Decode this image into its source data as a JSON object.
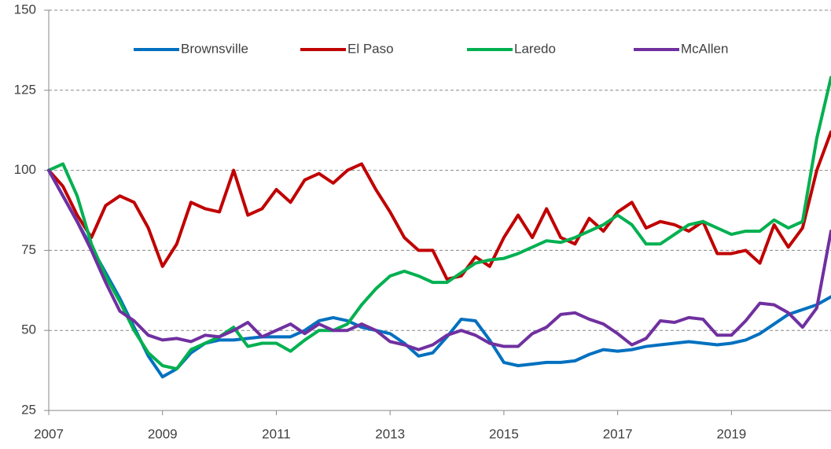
{
  "chart_data": {
    "type": "line",
    "x": [
      2007,
      2007.25,
      2007.5,
      2007.75,
      2008,
      2008.25,
      2008.5,
      2008.75,
      2009,
      2009.25,
      2009.5,
      2009.75,
      2010,
      2010.25,
      2010.5,
      2010.75,
      2011,
      2011.25,
      2011.5,
      2011.75,
      2012,
      2012.25,
      2012.5,
      2012.75,
      2013,
      2013.25,
      2013.5,
      2013.75,
      2014,
      2014.25,
      2014.5,
      2014.75,
      2015,
      2015.25,
      2015.5,
      2015.75,
      2016,
      2016.25,
      2016.5,
      2016.75,
      2017,
      2017.25,
      2017.5,
      2017.75,
      2018,
      2018.25,
      2018.5,
      2018.75,
      2019,
      2019.25,
      2019.5,
      2019.75,
      2020,
      2020.25,
      2020.5,
      2020.75
    ],
    "series": [
      {
        "name": "Brownsville",
        "color": "#0070c0",
        "values": [
          100,
          92,
          84,
          76,
          68,
          60,
          51,
          42,
          35.5,
          38,
          43,
          46,
          47,
          47,
          47.5,
          48,
          48,
          48,
          50,
          53,
          54,
          53,
          51,
          50,
          49,
          46,
          42,
          43,
          48,
          53.5,
          53,
          47,
          40,
          39,
          39.5,
          40,
          40,
          40.5,
          42.5,
          44,
          43.5,
          44,
          45,
          45.5,
          46,
          46.5,
          46,
          45.5,
          46,
          47,
          49,
          52,
          55,
          56.5,
          58,
          60.5
        ]
      },
      {
        "name": "El Paso",
        "color": "#c00000",
        "values": [
          100,
          95,
          86,
          79,
          89,
          92,
          90,
          82,
          70,
          77,
          90,
          88,
          87,
          100,
          86,
          88,
          94,
          90,
          97,
          99,
          96,
          100,
          102,
          94,
          87,
          79,
          75,
          75,
          66,
          67,
          73,
          70,
          79,
          86,
          79,
          88,
          79,
          77,
          85,
          81,
          87,
          90,
          82,
          84,
          83,
          81,
          84,
          74,
          74,
          75,
          71,
          83,
          76,
          82,
          100,
          112
        ]
      },
      {
        "name": "Laredo",
        "color": "#00b050",
        "values": [
          100,
          102,
          92,
          77,
          67,
          59,
          50,
          43,
          39,
          38,
          44,
          46,
          48,
          51,
          45,
          46,
          46,
          43.5,
          47,
          50,
          50,
          52,
          58,
          63,
          67,
          68.5,
          67,
          65,
          65,
          68,
          71,
          72,
          72.5,
          74,
          76,
          78,
          77.5,
          79,
          81,
          83,
          86,
          83,
          77,
          77,
          80,
          83,
          84,
          82,
          80,
          81,
          81,
          84.5,
          82,
          84,
          110,
          129
        ]
      },
      {
        "name": "McAllen",
        "color": "#7030a0",
        "values": [
          100,
          92,
          84,
          75,
          65,
          56,
          53,
          48.5,
          47,
          47.5,
          46.5,
          48.5,
          48,
          50,
          52.5,
          48,
          50,
          52,
          49,
          52,
          50,
          50,
          52,
          50,
          46.5,
          45.5,
          44,
          45.5,
          48.5,
          50,
          48.5,
          46,
          45,
          45,
          49,
          51,
          55,
          55.5,
          53.5,
          52,
          49,
          45.5,
          47.5,
          53,
          52.5,
          54,
          53.5,
          48.5,
          48.5,
          53,
          58.5,
          58,
          55.5,
          51,
          57,
          81
        ]
      }
    ],
    "xlim": [
      2007,
      2020.75
    ],
    "xticks": [
      2007,
      2009,
      2011,
      2013,
      2015,
      2017,
      2019
    ],
    "ylim": [
      25,
      150
    ],
    "yticks": [
      25,
      50,
      75,
      100,
      125,
      150
    ],
    "grid": true,
    "legend": "top"
  }
}
